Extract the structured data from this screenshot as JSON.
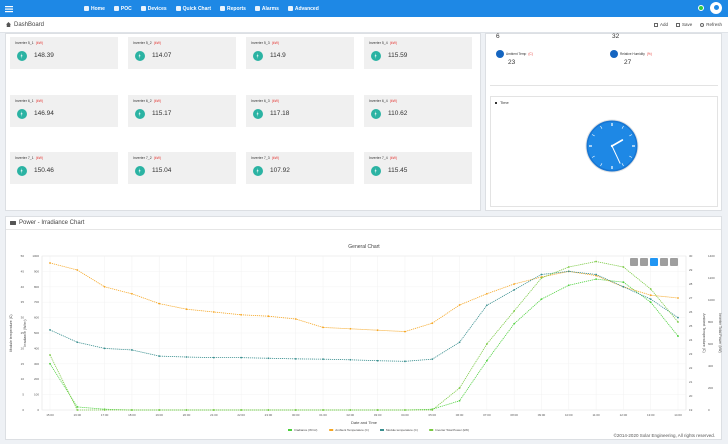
{
  "nav": {
    "items": [
      {
        "label": "Home",
        "icon": "home-icon"
      },
      {
        "label": "POC",
        "icon": "grid-icon"
      },
      {
        "label": "Devices",
        "icon": "device-icon"
      },
      {
        "label": "Quick Chart",
        "icon": "chart-icon"
      },
      {
        "label": "Reports",
        "icon": "report-icon"
      },
      {
        "label": "Alarms",
        "icon": "bell-icon"
      },
      {
        "label": "Advanced",
        "icon": "gear-icon"
      }
    ]
  },
  "subbar": {
    "title": "DashBoard",
    "add": "Add",
    "save": "Save",
    "refresh": "Refresh"
  },
  "inverters": [
    {
      "name": "Inverter 5_1",
      "tag": "(kW)",
      "value": "148.39"
    },
    {
      "name": "Inverter 5_2",
      "tag": "(kW)",
      "value": "114.07"
    },
    {
      "name": "Inverter 5_3",
      "tag": "(kW)",
      "value": "114.9"
    },
    {
      "name": "Inverter 5_4",
      "tag": "(kW)",
      "value": "115.59"
    },
    {
      "name": "Inverter 6_1",
      "tag": "(kW)",
      "value": "146.94"
    },
    {
      "name": "Inverter 6_2",
      "tag": "(kW)",
      "value": "115.17"
    },
    {
      "name": "Inverter 6_3",
      "tag": "(kW)",
      "value": "117.18"
    },
    {
      "name": "Inverter 6_4",
      "tag": "(kW)",
      "value": "110.62"
    },
    {
      "name": "Inverter 7_1",
      "tag": "(kW)",
      "value": "150.46"
    },
    {
      "name": "Inverter 7_2",
      "tag": "(kW)",
      "value": "115.04"
    },
    {
      "name": "Inverter 7_3",
      "tag": "(kW)",
      "value": "107.92"
    },
    {
      "name": "Inverter 7_4",
      "tag": "(kW)",
      "value": "115.45"
    }
  ],
  "weather": {
    "top_left_value": "6",
    "top_right_value": "32",
    "ambient": {
      "label": "Ambient Temp",
      "tag": "(C)",
      "value": "23"
    },
    "humidity": {
      "label": "Relative Humidity",
      "tag": "(%)",
      "value": "27"
    }
  },
  "time_box": {
    "title": "Time"
  },
  "clock": {
    "hour_angle": 60,
    "minute_angle": 155
  },
  "chart_panel": {
    "title": "Power - Irradiance Chart"
  },
  "chart_data": {
    "type": "line",
    "title": "General Chart",
    "xlabel": "Date and Time",
    "ylabel_left_outer": "Module temperature (C)",
    "ylabel_left_inner": "Irradiance (W/m²)",
    "ylabel_right_inner": "Ambient Temperature (C)",
    "ylabel_right_outer": "Inverter Total Power (kW)",
    "left_outer_ticks": [
      "0",
      "5",
      "10",
      "15",
      "20",
      "25",
      "30",
      "35",
      "40",
      "45",
      "50"
    ],
    "left_inner_ticks": [
      "0",
      "100",
      "200",
      "300",
      "400",
      "500",
      "600",
      "700",
      "800",
      "900",
      "1000"
    ],
    "right_inner_ticks": [
      "19",
      "20",
      "21",
      "22",
      "23",
      "24",
      "25",
      "26",
      "27",
      "28",
      "29",
      "30"
    ],
    "right_outer_ticks": [
      "0",
      "200",
      "400",
      "600",
      "800",
      "1000",
      "1200",
      "1400"
    ],
    "x_ticks": [
      "15:00",
      "16:00",
      "17:00",
      "18:00",
      "19:00",
      "20:00",
      "21:00",
      "22:00",
      "23:00",
      "00:00",
      "01:00",
      "02:00",
      "03:00",
      "04:00",
      "05:00",
      "06:00",
      "07:00",
      "08:00",
      "09:00",
      "10:00",
      "11:00",
      "12:00",
      "13:00",
      "14:00"
    ],
    "legend": [
      "Irradiance (W/m²)",
      "Ambient Temperature (C)",
      "Module temperature (C)",
      "Inverter Total Power (kW)"
    ],
    "colors": {
      "irradiance": "#4cd03c",
      "ambient": "#f5a623",
      "module": "#3a8f8f",
      "power": "#7ac943"
    },
    "x": [
      0,
      1,
      2,
      3,
      4,
      5,
      6,
      7,
      8,
      9,
      10,
      11,
      12,
      13,
      14,
      15,
      16,
      17,
      18,
      19,
      20,
      21,
      22,
      23
    ],
    "series": [
      {
        "name": "Irradiance (W/m²)",
        "values": [
          300,
          20,
          5,
          0,
          0,
          0,
          0,
          0,
          0,
          0,
          0,
          0,
          0,
          0,
          5,
          60,
          320,
          560,
          720,
          810,
          850,
          830,
          700,
          480
        ]
      },
      {
        "name": "Ambient Temperature (C)",
        "values": [
          29.5,
          29.0,
          27.8,
          27.3,
          26.6,
          26.2,
          26.0,
          25.8,
          25.7,
          25.5,
          24.9,
          24.8,
          24.7,
          24.6,
          25.2,
          26.5,
          27.3,
          28.0,
          28.5,
          28.9,
          28.6,
          27.8,
          27.2,
          27.0
        ]
      },
      {
        "name": "Module temperature (C)",
        "values": [
          26,
          22,
          20,
          19.5,
          17.5,
          17.2,
          17,
          17,
          16.8,
          16.6,
          16.5,
          16.3,
          16,
          15.8,
          16.5,
          22,
          34,
          39,
          44,
          45,
          44,
          40,
          36,
          30
        ]
      },
      {
        "name": "Inverter Total Power (kW)",
        "values": [
          500,
          0,
          0,
          0,
          0,
          0,
          0,
          0,
          0,
          0,
          0,
          0,
          0,
          0,
          0,
          200,
          600,
          900,
          1200,
          1300,
          1350,
          1300,
          1100,
          800
        ]
      }
    ]
  },
  "footer": "©2014-2020 Solar Engineering, All rights reserved."
}
